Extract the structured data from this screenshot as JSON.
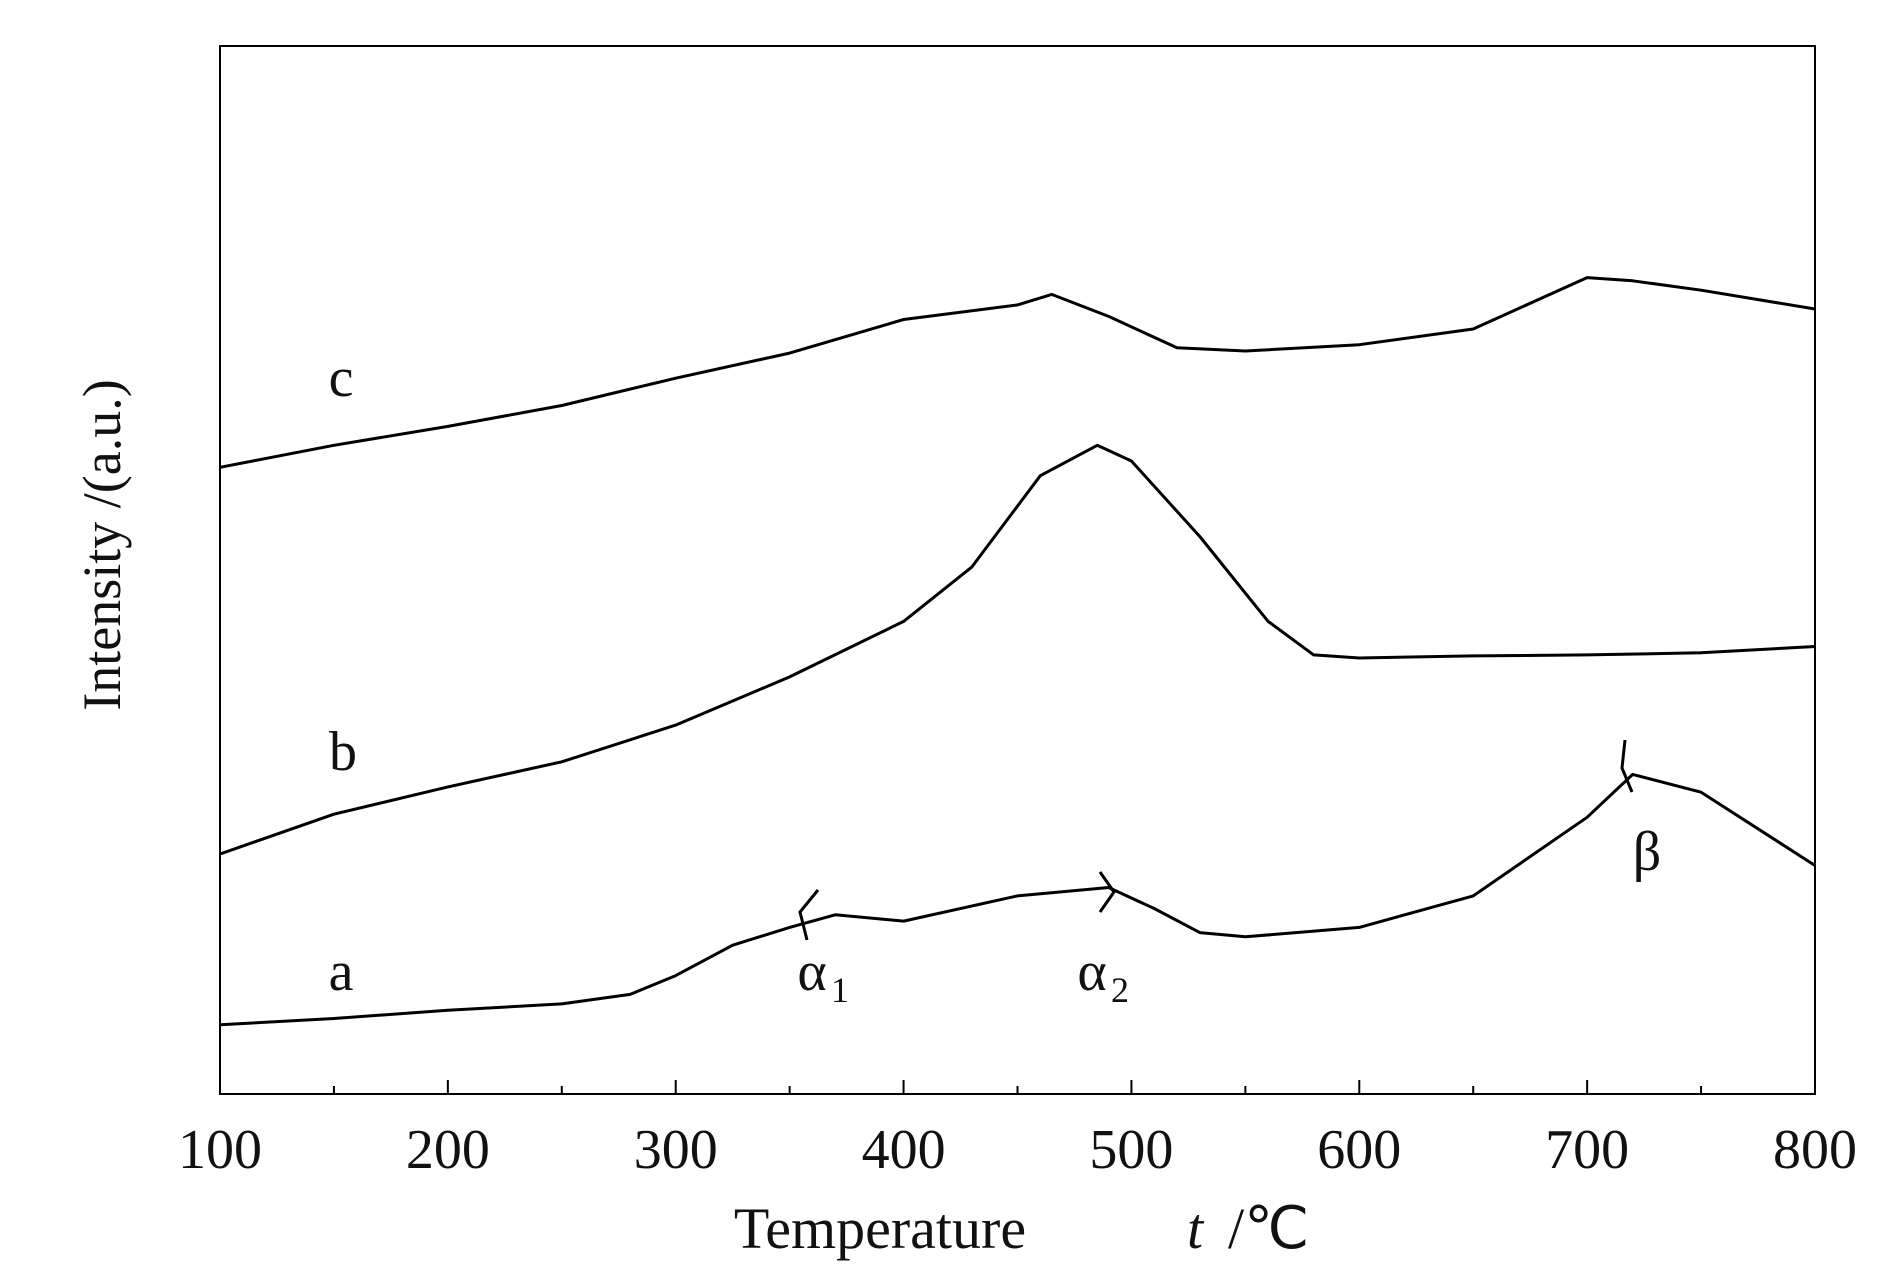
{
  "chart_data": {
    "type": "line",
    "x_label": {
      "text": "Temperature",
      "symbol": "t",
      "unit": "/℃"
    },
    "y_label": "Intensity /(a.u.)",
    "xlim": [
      100,
      800
    ],
    "ylim": [
      0,
      100
    ],
    "xticks": [
      100,
      200,
      300,
      400,
      500,
      600,
      700,
      800
    ],
    "xminorticks": [
      150,
      250,
      350,
      450,
      550,
      650,
      750
    ],
    "series": [
      {
        "name": "a",
        "color": "#000000",
        "x": [
          100,
          150,
          200,
          250,
          280,
          300,
          325,
          350,
          370,
          400,
          450,
          490,
          510,
          530,
          550,
          600,
          650,
          700,
          720,
          750,
          800
        ],
        "values": [
          6.6,
          7.2,
          8.0,
          8.6,
          9.5,
          11.3,
          14.2,
          15.9,
          17.1,
          16.5,
          18.9,
          19.7,
          17.7,
          15.4,
          15.0,
          15.9,
          18.9,
          26.4,
          30.5,
          28.8,
          21.8
        ]
      },
      {
        "name": "b",
        "color": "#000000",
        "x": [
          100,
          150,
          200,
          250,
          300,
          350,
          400,
          430,
          460,
          485,
          500,
          530,
          560,
          580,
          600,
          650,
          700,
          750,
          800
        ],
        "values": [
          22.9,
          26.7,
          29.3,
          31.7,
          35.2,
          39.8,
          45.1,
          50.3,
          59.0,
          61.9,
          60.4,
          53.2,
          45.1,
          41.9,
          41.6,
          41.8,
          41.9,
          42.1,
          42.7
        ]
      },
      {
        "name": "c",
        "color": "#000000",
        "x": [
          100,
          150,
          200,
          250,
          300,
          350,
          400,
          450,
          465,
          490,
          520,
          550,
          600,
          650,
          700,
          720,
          750,
          800
        ],
        "values": [
          59.8,
          61.9,
          63.7,
          65.7,
          68.3,
          70.7,
          73.9,
          75.3,
          76.3,
          74.2,
          71.2,
          70.9,
          71.5,
          73.0,
          77.9,
          77.6,
          76.7,
          74.9
        ]
      }
    ],
    "annotations": [
      {
        "text": "α",
        "sub": "1"
      },
      {
        "text": "α",
        "sub": "2"
      },
      {
        "text": "β"
      }
    ]
  }
}
